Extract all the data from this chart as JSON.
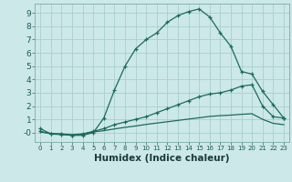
{
  "title": "",
  "xlabel": "Humidex (Indice chaleur)",
  "ylabel": "",
  "bg_color": "#cce8e8",
  "line_color": "#1a6b5a",
  "grid_color": "#aacece",
  "line1_x": [
    0,
    1,
    2,
    3,
    4,
    5,
    6,
    7,
    8,
    9,
    10,
    11,
    12,
    13,
    14,
    15,
    16,
    17,
    18,
    19,
    20,
    21,
    22,
    23
  ],
  "line1_y": [
    0.3,
    -0.1,
    -0.1,
    -0.2,
    -0.2,
    0.0,
    1.1,
    3.2,
    5.0,
    6.3,
    7.0,
    7.5,
    8.3,
    8.8,
    9.1,
    9.3,
    8.7,
    7.5,
    6.5,
    4.6,
    4.4,
    3.1,
    2.1,
    1.1
  ],
  "line2_x": [
    0,
    1,
    2,
    3,
    4,
    5,
    6,
    7,
    8,
    9,
    10,
    11,
    12,
    13,
    14,
    15,
    16,
    17,
    18,
    19,
    20,
    21,
    22,
    23
  ],
  "line2_y": [
    0.1,
    -0.1,
    -0.15,
    -0.2,
    -0.1,
    0.1,
    0.3,
    0.6,
    0.8,
    1.0,
    1.2,
    1.5,
    1.8,
    2.1,
    2.4,
    2.7,
    2.9,
    3.0,
    3.2,
    3.5,
    3.6,
    2.0,
    1.2,
    1.1
  ],
  "line3_x": [
    0,
    1,
    2,
    3,
    4,
    5,
    6,
    7,
    8,
    9,
    10,
    11,
    12,
    13,
    14,
    15,
    16,
    17,
    18,
    19,
    20,
    21,
    22,
    23
  ],
  "line3_y": [
    0.05,
    -0.05,
    -0.1,
    -0.15,
    -0.1,
    0.05,
    0.15,
    0.28,
    0.4,
    0.5,
    0.62,
    0.72,
    0.82,
    0.92,
    1.02,
    1.12,
    1.22,
    1.28,
    1.32,
    1.38,
    1.42,
    1.0,
    0.7,
    0.6
  ],
  "xlim": [
    -0.5,
    23.5
  ],
  "ylim": [
    -0.7,
    9.7
  ],
  "xticks": [
    0,
    1,
    2,
    3,
    4,
    5,
    6,
    7,
    8,
    9,
    10,
    11,
    12,
    13,
    14,
    15,
    16,
    17,
    18,
    19,
    20,
    21,
    22,
    23
  ],
  "yticks": [
    0,
    1,
    2,
    3,
    4,
    5,
    6,
    7,
    8,
    9
  ],
  "ytick_labels": [
    "-0",
    "1",
    "2",
    "3",
    "4",
    "5",
    "6",
    "7",
    "8",
    "9"
  ]
}
